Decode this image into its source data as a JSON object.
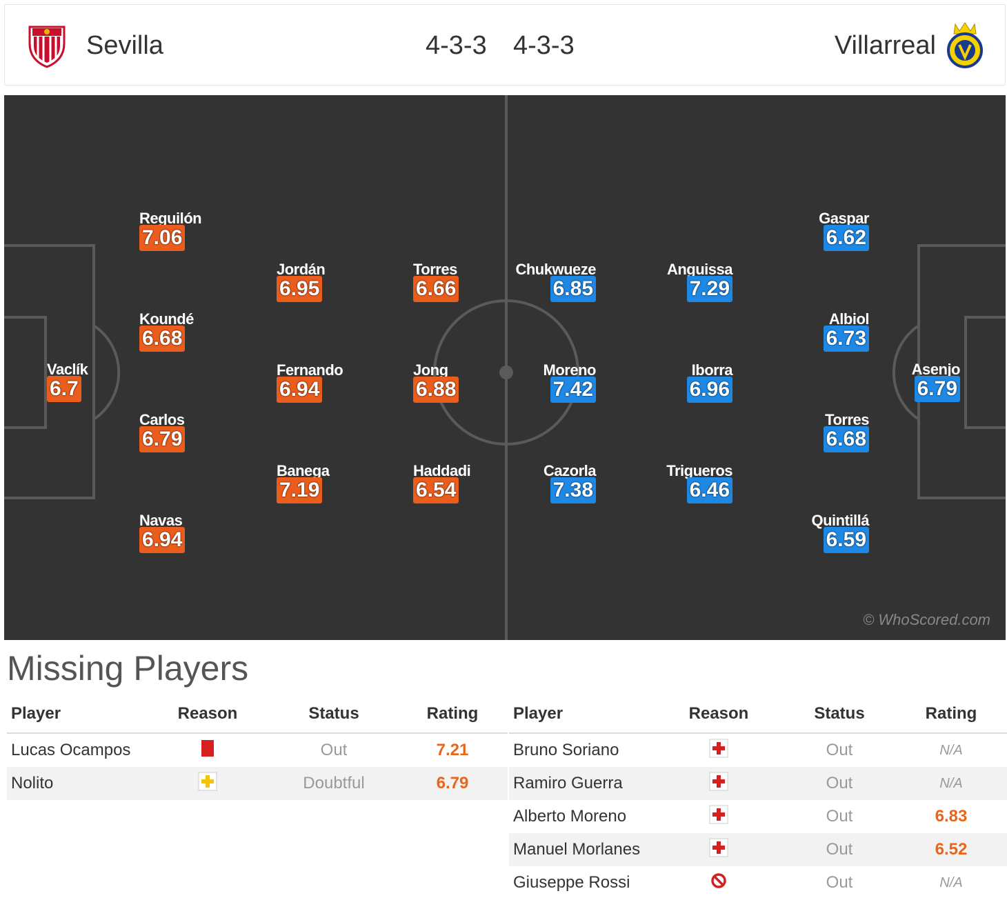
{
  "header": {
    "home_team": "Sevilla",
    "home_formation": "4-3-3",
    "away_formation": "4-3-3",
    "away_team": "Villarreal"
  },
  "colors": {
    "home_rating": "#ea5d1d",
    "away_rating": "#1e88e5",
    "pitch": "#333333"
  },
  "pitch": {
    "watermark": "© WhoScored.com",
    "home_players": [
      {
        "name": "Vaclík",
        "rating": "6.7"
      },
      {
        "name": "Reguilón",
        "rating": "7.06"
      },
      {
        "name": "Koundé",
        "rating": "6.68"
      },
      {
        "name": "Carlos",
        "rating": "6.79"
      },
      {
        "name": "Navas",
        "rating": "6.94"
      },
      {
        "name": "Jordán",
        "rating": "6.95"
      },
      {
        "name": "Fernando",
        "rating": "6.94"
      },
      {
        "name": "Banega",
        "rating": "7.19"
      },
      {
        "name": "Torres",
        "rating": "6.66"
      },
      {
        "name": "Jong",
        "rating": "6.88"
      },
      {
        "name": "Haddadi",
        "rating": "6.54"
      }
    ],
    "away_players": [
      {
        "name": "Asenjo",
        "rating": "6.79"
      },
      {
        "name": "Gaspar",
        "rating": "6.62"
      },
      {
        "name": "Albiol",
        "rating": "6.73"
      },
      {
        "name": "Torres",
        "rating": "6.68"
      },
      {
        "name": "Quintillá",
        "rating": "6.59"
      },
      {
        "name": "Anguissa",
        "rating": "7.29"
      },
      {
        "name": "Iborra",
        "rating": "6.96"
      },
      {
        "name": "Trigueros",
        "rating": "6.46"
      },
      {
        "name": "Chukwueze",
        "rating": "6.85"
      },
      {
        "name": "Moreno",
        "rating": "7.42"
      },
      {
        "name": "Cazorla",
        "rating": "7.38"
      }
    ]
  },
  "missing": {
    "title": "Missing Players",
    "columns": {
      "player": "Player",
      "reason": "Reason",
      "status": "Status",
      "rating": "Rating"
    },
    "home": [
      {
        "player": "Lucas Ocampos",
        "reason_icon": "red-card-icon",
        "status": "Out",
        "rating": "7.21"
      },
      {
        "player": "Nolito",
        "reason_icon": "doubtful-icon",
        "status": "Doubtful",
        "rating": "6.79"
      }
    ],
    "away": [
      {
        "player": "Bruno Soriano",
        "reason_icon": "injury-icon",
        "status": "Out",
        "rating": "N/A"
      },
      {
        "player": "Ramiro Guerra",
        "reason_icon": "injury-icon",
        "status": "Out",
        "rating": "N/A"
      },
      {
        "player": "Alberto Moreno",
        "reason_icon": "injury-icon",
        "status": "Out",
        "rating": "6.83"
      },
      {
        "player": "Manuel Morlanes",
        "reason_icon": "injury-icon",
        "status": "Out",
        "rating": "6.52"
      },
      {
        "player": "Giuseppe Rossi",
        "reason_icon": "suspended-icon",
        "status": "Out",
        "rating": "N/A"
      }
    ]
  }
}
